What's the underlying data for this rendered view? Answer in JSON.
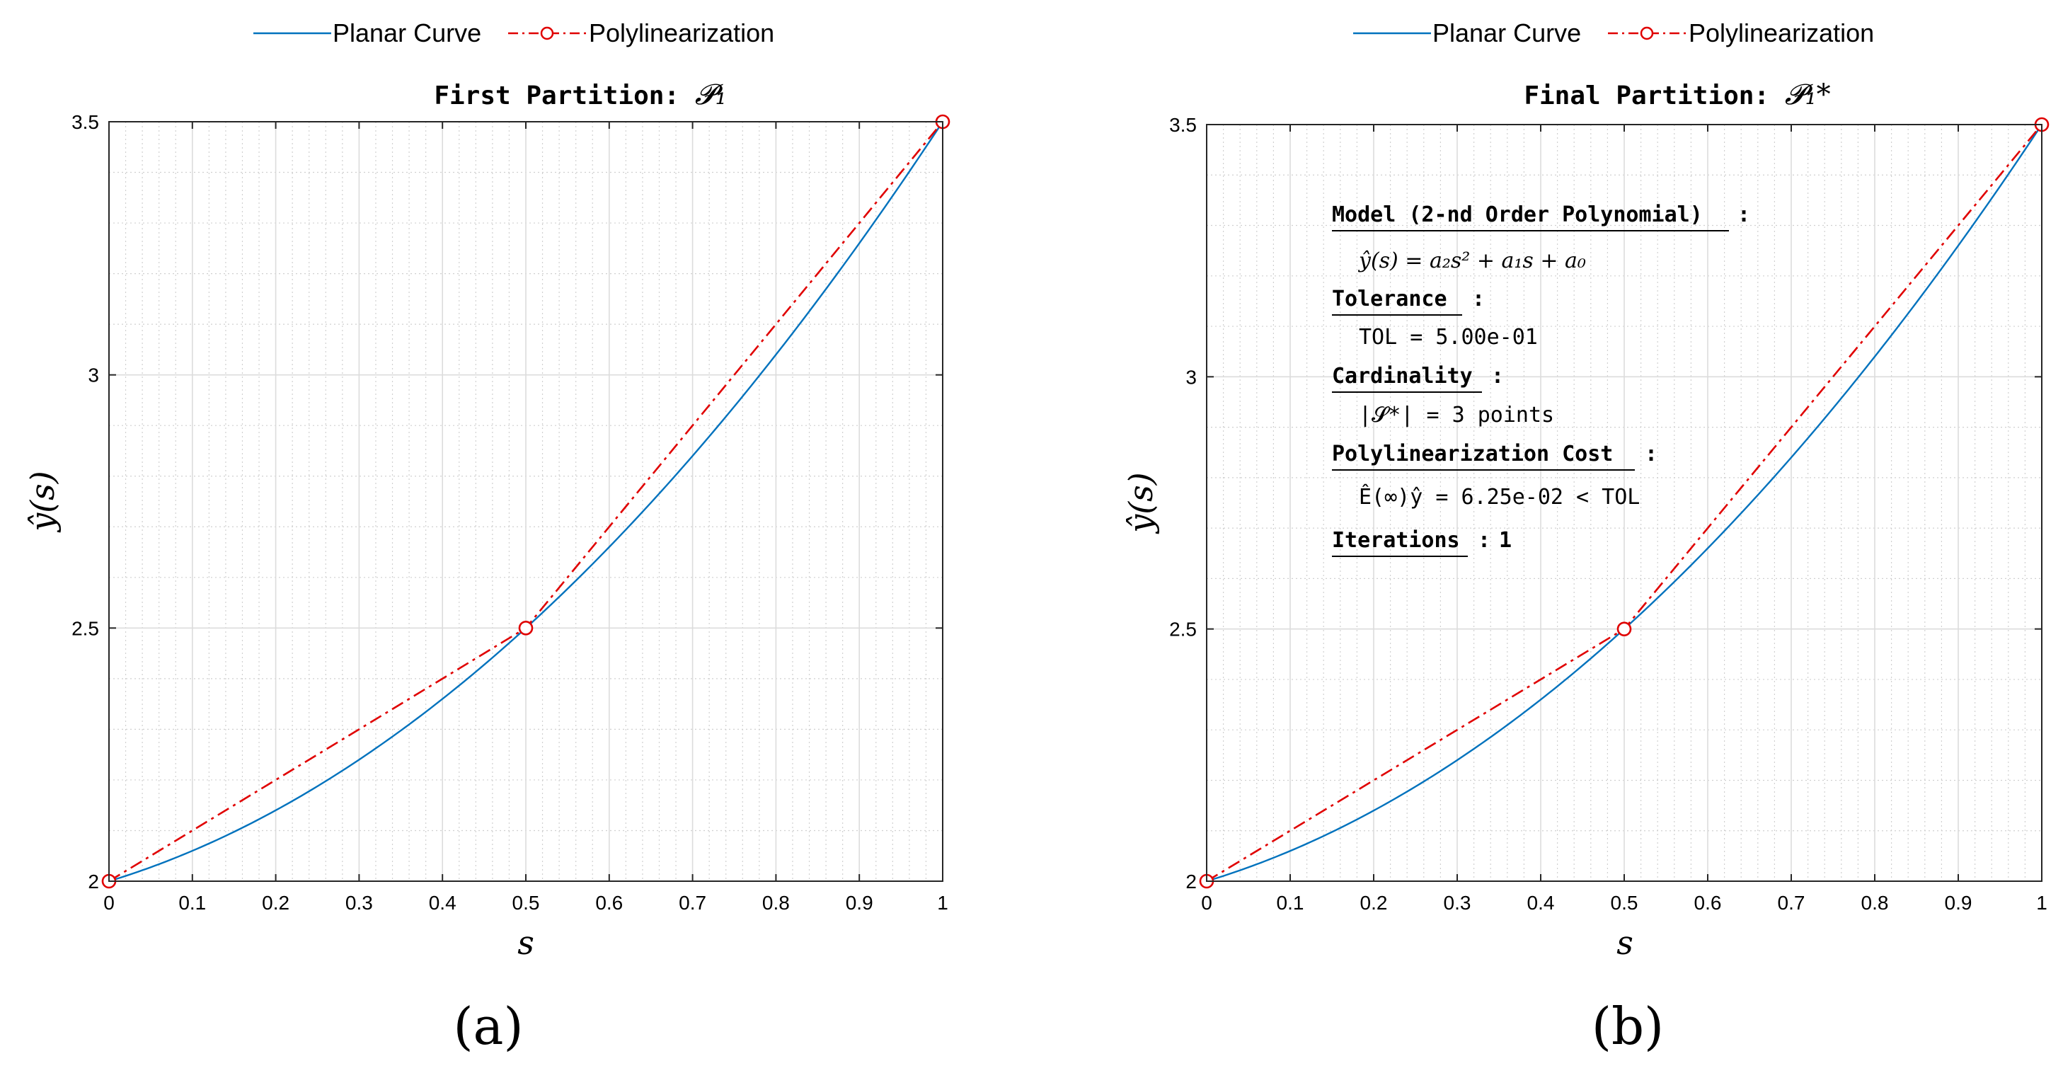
{
  "chart_data": [
    {
      "type": "line",
      "panel_label": "(a)",
      "title": "First Partition: ",
      "title_math": "𝓟₁",
      "xlabel": "s",
      "ylabel": "ŷ(s)",
      "xlim": [
        0,
        1
      ],
      "ylim": [
        2,
        3.5
      ],
      "xticks": [
        "0",
        "0.1",
        "0.2",
        "0.3",
        "0.4",
        "0.5",
        "0.6",
        "0.7",
        "0.8",
        "0.9",
        "1"
      ],
      "yticks": [
        "2",
        "2.5",
        "3",
        "3.5"
      ],
      "grid": true,
      "minor_grid": true,
      "legend_position": "top",
      "series": [
        {
          "name": "Planar Curve",
          "color": "#0072BD",
          "style": "solid",
          "model": "quadratic",
          "coefficients": {
            "a2": 1.0,
            "a1": 0.5,
            "a0": 2.0
          },
          "x": [
            0,
            0.1,
            0.2,
            0.3,
            0.4,
            0.5,
            0.6,
            0.7,
            0.8,
            0.9,
            1.0
          ],
          "y": [
            2.0,
            2.06,
            2.14,
            2.24,
            2.36,
            2.5,
            2.66,
            2.84,
            3.04,
            3.26,
            3.5
          ]
        },
        {
          "name": "Polylinearization",
          "color": "#E00000",
          "style": "dash-dot",
          "marker": "circle",
          "x": [
            0,
            0.5,
            1.0
          ],
          "y": [
            2.0,
            2.5,
            3.5
          ]
        }
      ]
    },
    {
      "type": "line",
      "panel_label": "(b)",
      "title": "Final Partition: ",
      "title_math": "𝓟₁*",
      "xlabel": "s",
      "ylabel": "ŷ(s)",
      "xlim": [
        0,
        1
      ],
      "ylim": [
        2,
        3.5
      ],
      "xticks": [
        "0",
        "0.1",
        "0.2",
        "0.3",
        "0.4",
        "0.5",
        "0.6",
        "0.7",
        "0.8",
        "0.9",
        "1"
      ],
      "yticks": [
        "2",
        "2.5",
        "3",
        "3.5"
      ],
      "grid": true,
      "minor_grid": true,
      "legend_position": "top",
      "series": [
        {
          "name": "Planar Curve",
          "color": "#0072BD",
          "style": "solid",
          "model": "quadratic",
          "coefficients": {
            "a2": 1.0,
            "a1": 0.5,
            "a0": 2.0
          },
          "x": [
            0,
            0.1,
            0.2,
            0.3,
            0.4,
            0.5,
            0.6,
            0.7,
            0.8,
            0.9,
            1.0
          ],
          "y": [
            2.0,
            2.06,
            2.14,
            2.24,
            2.36,
            2.5,
            2.66,
            2.84,
            3.04,
            3.26,
            3.5
          ]
        },
        {
          "name": "Polylinearization",
          "color": "#E00000",
          "style": "dash-dot",
          "marker": "circle",
          "x": [
            0,
            0.5,
            1.0
          ],
          "y": [
            2.0,
            2.5,
            3.5
          ]
        }
      ],
      "annotation": {
        "model_head": "Model (2-nd Order Polynomial)",
        "model_eq": "ŷ(s) = a₂s² + a₁s + a₀",
        "tolerance_head": "Tolerance",
        "tolerance_value": "TOL = 5.00e-01",
        "cardinality_head": "Cardinality",
        "cardinality_value": "|𝓢*| = 3 points",
        "cost_head": "Polylinearization Cost",
        "cost_value": "Ê(∞)ŷ = 6.25e-02 < TOL",
        "iterations_head": "Iterations",
        "iterations_value": "1",
        "separator": ":"
      }
    }
  ]
}
